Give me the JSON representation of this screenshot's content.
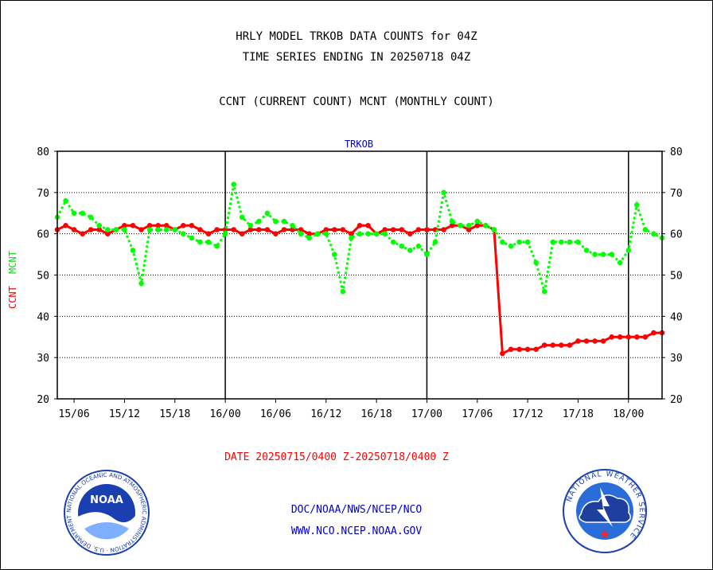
{
  "chart_data": {
    "type": "line",
    "title_lines": [
      "HRLY MODEL TRKOB DATA COUNTS for 04Z",
      "TIME SERIES ENDING IN 20250718 04Z"
    ],
    "subtitle": "CCNT (CURRENT COUNT) MCNT (MONTHLY COUNT)",
    "panel_label": "TRKOB",
    "ylabel_ccnt": "CCNT",
    "ylabel_mcnt": "MCNT",
    "xlabel": "DATE 20250715/0400 Z-20250718/0400 Z",
    "ylim": [
      20,
      80
    ],
    "yticks": [
      20,
      30,
      40,
      50,
      60,
      70,
      80
    ],
    "xticks": [
      {
        "label": "15/06",
        "hour": 2
      },
      {
        "label": "15/12",
        "hour": 8
      },
      {
        "label": "15/18",
        "hour": 14
      },
      {
        "label": "16/00",
        "hour": 20
      },
      {
        "label": "16/06",
        "hour": 26
      },
      {
        "label": "16/12",
        "hour": 32
      },
      {
        "label": "16/18",
        "hour": 38
      },
      {
        "label": "17/00",
        "hour": 44
      },
      {
        "label": "17/06",
        "hour": 50
      },
      {
        "label": "17/12",
        "hour": 56
      },
      {
        "label": "17/18",
        "hour": 62
      },
      {
        "label": "18/00",
        "hour": 68
      }
    ],
    "day_boundaries": [
      20,
      44,
      68
    ],
    "grid": true,
    "x_start_hour": 0,
    "x_end_hour": 72,
    "series": [
      {
        "name": "CCNT",
        "color": "#ff0000",
        "values": [
          61,
          62,
          61,
          60,
          61,
          61,
          60,
          61,
          62,
          62,
          61,
          62,
          62,
          62,
          61,
          62,
          62,
          61,
          60,
          61,
          61,
          61,
          60,
          61,
          61,
          61,
          60,
          61,
          61,
          61,
          60,
          60,
          61,
          61,
          61,
          60,
          62,
          62,
          60,
          61,
          61,
          61,
          60,
          61,
          61,
          61,
          61,
          62,
          62,
          61,
          62,
          62,
          61,
          31,
          32,
          32,
          32,
          32,
          33,
          33,
          33,
          33,
          34,
          34,
          34,
          34,
          35,
          35,
          35,
          35,
          35,
          36,
          36
        ]
      },
      {
        "name": "MCNT",
        "color": "#00ff00",
        "values": [
          64,
          68,
          65,
          65,
          64,
          62,
          61,
          61,
          61,
          56,
          48,
          61,
          61,
          61,
          61,
          60,
          59,
          58,
          58,
          57,
          60,
          72,
          64,
          62,
          63,
          65,
          63,
          63,
          62,
          60,
          59,
          60,
          60,
          55,
          46,
          59,
          60,
          60,
          60,
          60,
          58,
          57,
          56,
          57,
          55,
          58,
          70,
          63,
          62,
          62,
          63,
          62,
          61,
          58,
          57,
          58,
          58,
          53,
          46,
          58,
          58,
          58,
          58,
          56,
          55,
          55,
          55,
          53,
          56,
          67,
          61,
          60,
          59
        ]
      }
    ]
  },
  "footer": {
    "line1": "DOC/NOAA/NWS/NCEP/NCO",
    "line2": "WWW.NCO.NCEP.NOAA.GOV"
  },
  "logos": {
    "noaa_text": "NOAA",
    "noaa_ring": "NATIONAL OCEANIC AND ATMOSPHERIC ADMINISTRATION · U.S. DEPARTMENT OF COMMERCE ·",
    "nws_ring": "NATIONAL WEATHER SERVICE"
  },
  "colors": {
    "title": "#000000",
    "panel_label": "#0000cc",
    "xlabel": "#ff0000",
    "footer": "#0000cc",
    "noaa_blue": "#1a3fb0",
    "nws_blue": "#2a6cd8"
  }
}
